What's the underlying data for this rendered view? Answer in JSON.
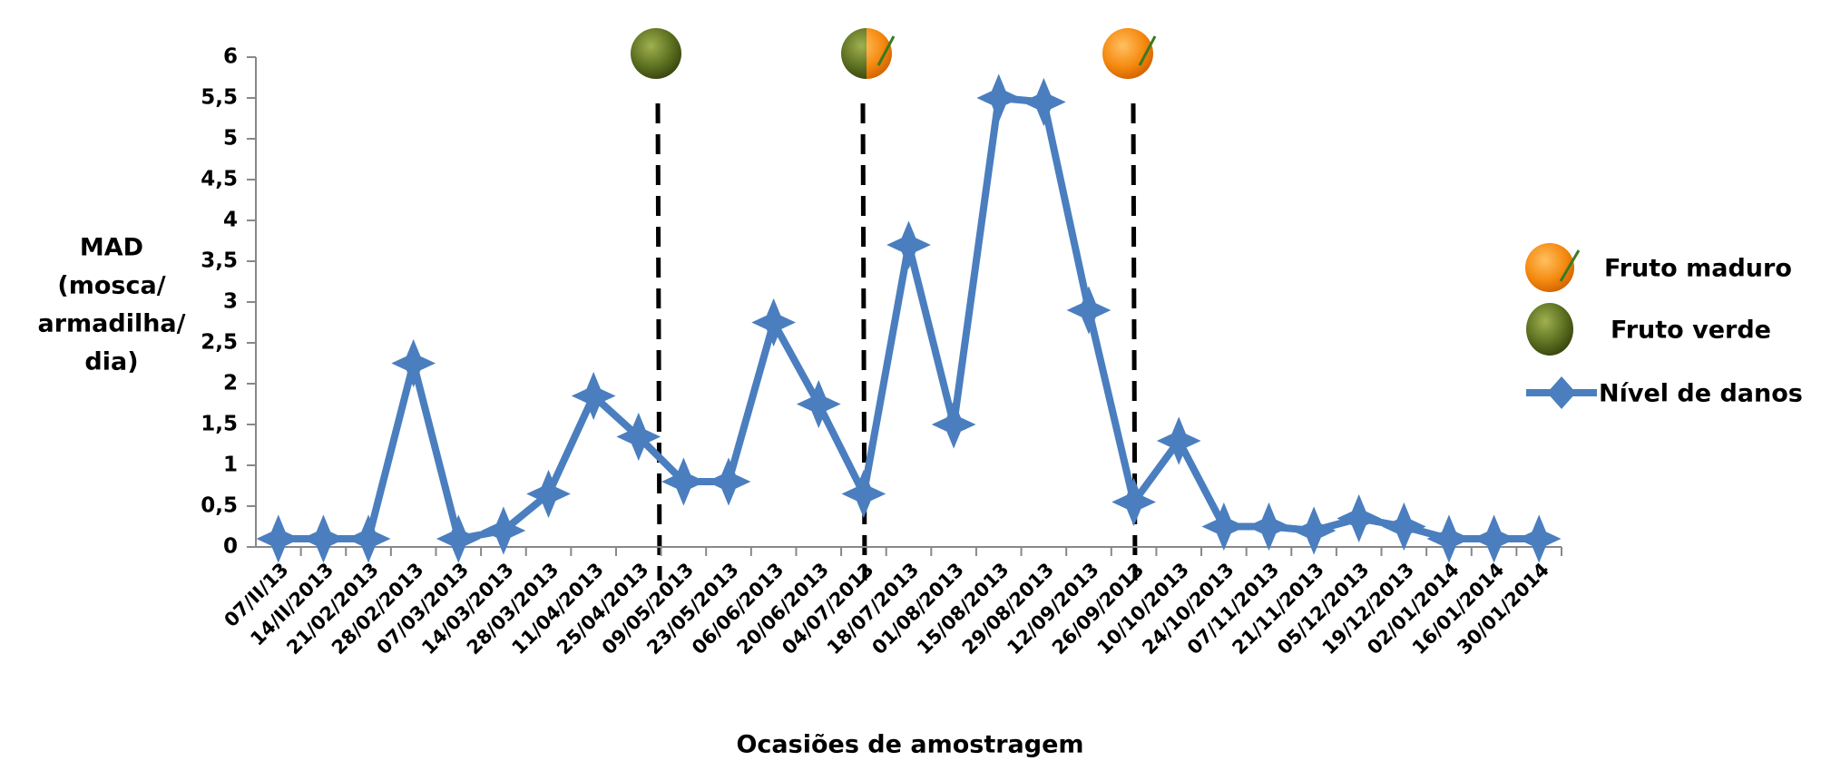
{
  "chart_data": {
    "type": "line",
    "xlabel": "Ocasiões de amostragem",
    "ylabel": [
      "MAD",
      "(mosca/",
      "armadilha/",
      "dia)"
    ],
    "legend_items": [
      "Fruto maduro",
      "Fruto verde"
    ],
    "categories": [
      "07/II/13",
      "14/II/2013",
      "21/02/2013",
      "28/02/2013",
      "07/03/2013",
      "14/03/2013",
      "28/03/2013",
      "11/04/2013",
      "25/04/2013",
      "09/05/2013",
      "23/05/2013",
      "06/06/2013",
      "20/06/2013",
      "04/07/2013",
      "18/07/2013",
      "01/08/2013",
      "15/08/2013",
      "29/08/2013",
      "12/09/2013",
      "26/09/2013",
      "10/10/2013",
      "24/10/2013",
      "07/11/2013",
      "21/11/2013",
      "05/12/2013",
      "19/12/2013",
      "02/01/2014",
      "16/01/2014",
      "30/01/2014"
    ],
    "series": [
      {
        "name": "Nível de danos",
        "color": "#4a7ebf",
        "values": [
          0.1,
          0.1,
          0.1,
          2.25,
          0.1,
          0.2,
          0.65,
          1.85,
          1.35,
          0.8,
          0.8,
          2.75,
          1.75,
          0.65,
          3.7,
          1.5,
          5.5,
          5.45,
          2.9,
          0.55,
          1.3,
          0.25,
          0.25,
          0.2,
          0.35,
          0.25,
          0.1,
          0.1,
          0.1
        ]
      }
    ],
    "ylim": [
      0,
      6
    ],
    "yticks": [
      0,
      {
        "value": 0.5,
        "label": "0,5"
      },
      1,
      {
        "value": 1.5,
        "label": "1,5"
      },
      2,
      {
        "value": 2.5,
        "label": "2,5"
      },
      3,
      {
        "value": 3.5,
        "label": "3,5"
      },
      4,
      {
        "value": 4.5,
        "label": "4,5"
      },
      5,
      {
        "value": 5.5,
        "label": "5,5"
      },
      6
    ],
    "grid": false
  }
}
